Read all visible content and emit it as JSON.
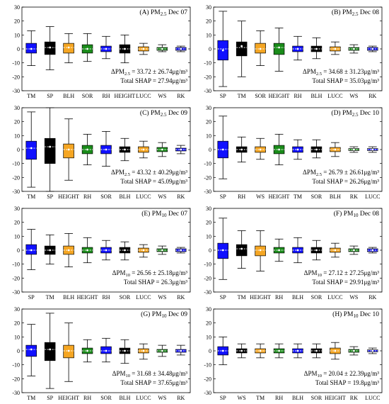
{
  "chart_data": [
    {
      "type": "box",
      "title_prefix": "(A) PM",
      "title_sub": "2.5",
      "title_suffix": " Dec 07",
      "categories": [
        "TM",
        "SP",
        "BLH",
        "SOR",
        "RH",
        "HEIGHT",
        "LUCC",
        "WS",
        "RK"
      ],
      "colors": [
        "#1010ff",
        "#000000",
        "#f5a623",
        "#1a8c1a",
        "#1010ff",
        "#000000",
        "#f5a623",
        "#1a8c1a",
        "#1010ff"
      ],
      "boxes": [
        {
          "q1": -3,
          "q3": 4,
          "median": 0,
          "mean": 0,
          "wlo": -12,
          "whi": 13
        },
        {
          "q1": -4,
          "q3": 5,
          "median": 1,
          "mean": 1,
          "wlo": -15,
          "whi": 16
        },
        {
          "q1": -3,
          "q3": 4,
          "median": 1,
          "mean": 1,
          "wlo": -10,
          "whi": 11
        },
        {
          "q1": -3,
          "q3": 3,
          "median": 0,
          "mean": 0,
          "wlo": -9,
          "whi": 11
        },
        {
          "q1": -2,
          "q3": 2,
          "median": 0,
          "mean": 0,
          "wlo": -7,
          "whi": 9
        },
        {
          "q1": -3,
          "q3": 3,
          "median": 0,
          "mean": 0,
          "wlo": -10,
          "whi": 10
        },
        {
          "q1": -1.5,
          "q3": 1.5,
          "median": 0,
          "mean": 0,
          "wlo": -4,
          "whi": 4
        },
        {
          "q1": -1,
          "q3": 1,
          "median": 0,
          "mean": 0,
          "wlo": -2,
          "whi": 3
        },
        {
          "q1": -1,
          "q3": 1,
          "median": 0,
          "mean": 0,
          "wlo": -2,
          "whi": 2
        }
      ],
      "stat_mean_label": "ΔPM",
      "stat_mean_sub": "2.5",
      "stat_mean_value": " = 33.72 ± 26.74μg/m³",
      "stat_total": "Total  SHAP = 27.94μg/m³",
      "ylim": [
        -30,
        30
      ],
      "yticks": [
        -30,
        -20,
        -10,
        0,
        10,
        20,
        30
      ]
    },
    {
      "type": "box",
      "title_prefix": "(B) PM",
      "title_sub": "2.5",
      "title_suffix": " Dec 08",
      "categories": [
        "SP",
        "TM",
        "SOR",
        "HEIGHT",
        "RH",
        "BLH",
        "LUCC",
        "WS",
        "RK"
      ],
      "colors": [
        "#1010ff",
        "#000000",
        "#f5a623",
        "#1a8c1a",
        "#1010ff",
        "#000000",
        "#f5a623",
        "#1a8c1a",
        "#1010ff"
      ],
      "boxes": [
        {
          "q1": -8,
          "q3": 6,
          "median": 0,
          "mean": -1,
          "wlo": -27,
          "whi": 27
        },
        {
          "q1": -5,
          "q3": 5,
          "median": 1,
          "mean": 2,
          "wlo": -20,
          "whi": 20
        },
        {
          "q1": -3,
          "q3": 4,
          "median": 0,
          "mean": 0,
          "wlo": -12,
          "whi": 13
        },
        {
          "q1": -4,
          "q3": 4,
          "median": 1,
          "mean": 1,
          "wlo": -16,
          "whi": 15
        },
        {
          "q1": -2,
          "q3": 2,
          "median": 0,
          "mean": 0,
          "wlo": -8,
          "whi": 9
        },
        {
          "q1": -2,
          "q3": 2,
          "median": 0,
          "mean": 0,
          "wlo": -7,
          "whi": 8
        },
        {
          "q1": -1.5,
          "q3": 1.5,
          "median": 0,
          "mean": 0,
          "wlo": -4,
          "whi": 5
        },
        {
          "q1": -1,
          "q3": 1,
          "median": 0,
          "mean": 0,
          "wlo": -3,
          "whi": 3
        },
        {
          "q1": -1,
          "q3": 1,
          "median": 0,
          "mean": 0,
          "wlo": -2,
          "whi": 2
        }
      ],
      "stat_mean_label": "ΔPM",
      "stat_mean_sub": "2.5",
      "stat_mean_value": " = 34.68 ± 31.23μg/m³",
      "stat_total": "Total  SHAP = 35.03μg/m³",
      "ylim": [
        -30,
        30
      ],
      "yticks": [
        -30,
        -20,
        -10,
        0,
        10,
        20,
        30
      ]
    },
    {
      "type": "box",
      "title_prefix": "(C) PM",
      "title_sub": "2.5",
      "title_suffix": " Dec 09",
      "categories": [
        "TM",
        "SP",
        "HEIGHT",
        "RH",
        "SOR",
        "BLH",
        "LUCC",
        "WS",
        "RK"
      ],
      "colors": [
        "#1010ff",
        "#000000",
        "#f5a623",
        "#1a8c1a",
        "#1010ff",
        "#000000",
        "#f5a623",
        "#1a8c1a",
        "#1010ff"
      ],
      "boxes": [
        {
          "q1": -7,
          "q3": 6,
          "median": 1,
          "mean": 1,
          "wlo": -27,
          "whi": 27
        },
        {
          "q1": -10,
          "q3": 8,
          "median": 2,
          "mean": 2,
          "wlo": -30,
          "whi": 30
        },
        {
          "q1": -6,
          "q3": 4,
          "median": 0,
          "mean": 0,
          "wlo": -22,
          "whi": 22
        },
        {
          "q1": -3,
          "q3": 3,
          "median": 0,
          "mean": 0,
          "wlo": -11,
          "whi": 11
        },
        {
          "q1": -3,
          "q3": 3,
          "median": 0,
          "mean": 0,
          "wlo": -12,
          "whi": 13
        },
        {
          "q1": -2,
          "q3": 2,
          "median": 0,
          "mean": 0,
          "wlo": -8,
          "whi": 8
        },
        {
          "q1": -2,
          "q3": 2,
          "median": 0,
          "mean": 0,
          "wlo": -6,
          "whi": 6
        },
        {
          "q1": -1.5,
          "q3": 1.5,
          "median": 0,
          "mean": 0,
          "wlo": -5,
          "whi": 5
        },
        {
          "q1": -1,
          "q3": 1,
          "median": 0,
          "mean": 0,
          "wlo": -3,
          "whi": 3
        }
      ],
      "stat_mean_label": "ΔPM",
      "stat_mean_sub": "2.5",
      "stat_mean_value": " = 43.32 ± 40.29μg/m³",
      "stat_total": "Total  SHAP = 45.09μg/m³",
      "ylim": [
        -30,
        30
      ],
      "yticks": [
        -30,
        -20,
        -10,
        0,
        10,
        20,
        30
      ]
    },
    {
      "type": "box",
      "title_prefix": "(D) PM",
      "title_sub": "2.5",
      "title_suffix": " Dec 10",
      "categories": [
        "SP",
        "RH",
        "WS",
        "HEIGHT",
        "TM",
        "SOR",
        "BLH",
        "RK",
        "LUCC"
      ],
      "colors": [
        "#1010ff",
        "#000000",
        "#f5a623",
        "#1a8c1a",
        "#1010ff",
        "#000000",
        "#f5a623",
        "#1a8c1a",
        "#1010ff"
      ],
      "boxes": [
        {
          "q1": -6,
          "q3": 6,
          "median": 0,
          "mean": 0,
          "wlo": -21,
          "whi": 24
        },
        {
          "q1": -2,
          "q3": 2,
          "median": 0,
          "mean": 0,
          "wlo": -9,
          "whi": 9
        },
        {
          "q1": -2,
          "q3": 2,
          "median": 0,
          "mean": 0,
          "wlo": -7,
          "whi": 8
        },
        {
          "q1": -3,
          "q3": 3,
          "median": 0,
          "mean": 0,
          "wlo": -11,
          "whi": 11
        },
        {
          "q1": -2,
          "q3": 2,
          "median": 0,
          "mean": 0,
          "wlo": -7,
          "whi": 7
        },
        {
          "q1": -2,
          "q3": 2,
          "median": 0,
          "mean": 0,
          "wlo": -6,
          "whi": 7
        },
        {
          "q1": -1.5,
          "q3": 1.5,
          "median": 0,
          "mean": 0,
          "wlo": -5,
          "whi": 5
        },
        {
          "q1": -0.7,
          "q3": 0.7,
          "median": 0,
          "mean": 0,
          "wlo": -2,
          "whi": 2
        },
        {
          "q1": -0.7,
          "q3": 0.7,
          "median": 0,
          "mean": 0,
          "wlo": -2,
          "whi": 2
        }
      ],
      "stat_mean_label": "ΔPM",
      "stat_mean_sub": "2.5",
      "stat_mean_value": " = 26.79 ± 26.61μg/m³",
      "stat_total": "Total  SHAP = 26.26μg/m³",
      "ylim": [
        -30,
        30
      ],
      "yticks": [
        -30,
        -20,
        -10,
        0,
        10,
        20,
        30
      ]
    },
    {
      "type": "box",
      "title_prefix": "(E) PM",
      "title_sub": "10",
      "title_suffix": " Dec 07",
      "categories": [
        "SP",
        "TM",
        "BLH",
        "HEIGHT",
        "RH",
        "SOR",
        "LUCC",
        "WS",
        "RK"
      ],
      "colors": [
        "#1010ff",
        "#000000",
        "#f5a623",
        "#1a8c1a",
        "#1010ff",
        "#000000",
        "#f5a623",
        "#1a8c1a",
        "#1010ff"
      ],
      "boxes": [
        {
          "q1": -3,
          "q3": 4,
          "median": 0,
          "mean": 0,
          "wlo": -14,
          "whi": 15
        },
        {
          "q1": -3,
          "q3": 3,
          "median": 0,
          "mean": 0,
          "wlo": -10,
          "whi": 11
        },
        {
          "q1": -3,
          "q3": 3,
          "median": 0,
          "mean": 0,
          "wlo": -12,
          "whi": 12
        },
        {
          "q1": -2,
          "q3": 2,
          "median": 0,
          "mean": 0,
          "wlo": -9,
          "whi": 9
        },
        {
          "q1": -2,
          "q3": 2,
          "median": 0,
          "mean": 0,
          "wlo": -7,
          "whi": 7
        },
        {
          "q1": -2,
          "q3": 2,
          "median": 0,
          "mean": 0,
          "wlo": -7,
          "whi": 6
        },
        {
          "q1": -1.5,
          "q3": 1.5,
          "median": 0,
          "mean": 0,
          "wlo": -5,
          "whi": 4
        },
        {
          "q1": -1,
          "q3": 1,
          "median": 0,
          "mean": 0,
          "wlo": -3,
          "whi": 3
        },
        {
          "q1": -1,
          "q3": 1,
          "median": 0,
          "mean": 0,
          "wlo": -2,
          "whi": 2
        }
      ],
      "stat_mean_label": "ΔPM",
      "stat_mean_sub": "10",
      "stat_mean_value": " = 26.56 ± 25.18μg/m³",
      "stat_total": "Total  SHAP = 26.3μg/m³",
      "ylim": [
        -30,
        30
      ],
      "yticks": [
        -30,
        -20,
        -10,
        0,
        10,
        20,
        30
      ]
    },
    {
      "type": "box",
      "title_prefix": "(F) PM",
      "title_sub": "10",
      "title_suffix": " Dec 08",
      "categories": [
        "SP",
        "TM",
        "HEIGHT",
        "RH",
        "BLH",
        "SOR",
        "LUCC",
        "WS",
        "RK"
      ],
      "colors": [
        "#1010ff",
        "#000000",
        "#f5a623",
        "#1a8c1a",
        "#1010ff",
        "#000000",
        "#f5a623",
        "#1a8c1a",
        "#1010ff"
      ],
      "boxes": [
        {
          "q1": -6,
          "q3": 5,
          "median": 0,
          "mean": 0,
          "wlo": -21,
          "whi": 23
        },
        {
          "q1": -4,
          "q3": 4,
          "median": 1,
          "mean": 1,
          "wlo": -13,
          "whi": 14
        },
        {
          "q1": -4,
          "q3": 3,
          "median": 0,
          "mean": 0,
          "wlo": -15,
          "whi": 14
        },
        {
          "q1": -2,
          "q3": 2,
          "median": 0,
          "mean": 0,
          "wlo": -8,
          "whi": 8
        },
        {
          "q1": -2,
          "q3": 2,
          "median": 0,
          "mean": 0,
          "wlo": -9,
          "whi": 9
        },
        {
          "q1": -2,
          "q3": 2,
          "median": 0,
          "mean": 0,
          "wlo": -7,
          "whi": 7
        },
        {
          "q1": -1.5,
          "q3": 1.5,
          "median": 0,
          "mean": 0,
          "wlo": -5,
          "whi": 5
        },
        {
          "q1": -1,
          "q3": 1,
          "median": 0,
          "mean": 0,
          "wlo": -3,
          "whi": 3
        },
        {
          "q1": -1,
          "q3": 1,
          "median": 0,
          "mean": 0,
          "wlo": -2,
          "whi": 2
        }
      ],
      "stat_mean_label": "ΔPM",
      "stat_mean_sub": "10",
      "stat_mean_value": " = 27.12 ± 27.25μg/m³",
      "stat_total": "Total  SHAP = 29.91μg/m³",
      "ylim": [
        -30,
        30
      ],
      "yticks": [
        -30,
        -20,
        -10,
        0,
        10,
        20,
        30
      ]
    },
    {
      "type": "box",
      "title_prefix": "(G) PM",
      "title_sub": "10",
      "title_suffix": " Dec 09",
      "categories": [
        "TM",
        "SP",
        "HEIGHT",
        "RH",
        "SOR",
        "BLH",
        "LUCC",
        "WS",
        "RK"
      ],
      "colors": [
        "#1010ff",
        "#000000",
        "#f5a623",
        "#1a8c1a",
        "#1010ff",
        "#000000",
        "#f5a623",
        "#1a8c1a",
        "#1010ff"
      ],
      "boxes": [
        {
          "q1": -4,
          "q3": 4,
          "median": 1,
          "mean": 1,
          "wlo": -18,
          "whi": 19
        },
        {
          "q1": -7,
          "q3": 6,
          "median": 1,
          "mean": 1,
          "wlo": -27,
          "whi": 27
        },
        {
          "q1": -5,
          "q3": 4,
          "median": 0,
          "mean": 0,
          "wlo": -22,
          "whi": 20
        },
        {
          "q1": -2,
          "q3": 2,
          "median": 0,
          "mean": 0,
          "wlo": -8,
          "whi": 8
        },
        {
          "q1": -2,
          "q3": 3,
          "median": 0,
          "mean": 0,
          "wlo": -8,
          "whi": 9
        },
        {
          "q1": -2,
          "q3": 2,
          "median": 0,
          "mean": 0,
          "wlo": -9,
          "whi": 8
        },
        {
          "q1": -1.5,
          "q3": 1.5,
          "median": 0,
          "mean": 0,
          "wlo": -6,
          "whi": 5
        },
        {
          "q1": -1,
          "q3": 1,
          "median": 0,
          "mean": 0,
          "wlo": -4,
          "whi": 4
        },
        {
          "q1": -1,
          "q3": 1,
          "median": 0,
          "mean": 0,
          "wlo": -3,
          "whi": 4
        }
      ],
      "stat_mean_label": "ΔPM",
      "stat_mean_sub": "10",
      "stat_mean_value": " = 31.68 ± 34.48μg/m³",
      "stat_total": "Total  SHAP = 37.65μg/m³",
      "ylim": [
        -30,
        30
      ],
      "yticks": [
        -30,
        -20,
        -10,
        0,
        10,
        20,
        30
      ]
    },
    {
      "type": "box",
      "title_prefix": "(H) PM",
      "title_sub": "10",
      "title_suffix": " Dec 10",
      "categories": [
        "SP",
        "WS",
        "TM",
        "RH",
        "BLH",
        "SOR",
        "HEIGHT",
        "RK",
        "LUCC"
      ],
      "colors": [
        "#1010ff",
        "#000000",
        "#f5a623",
        "#1a8c1a",
        "#1010ff",
        "#000000",
        "#f5a623",
        "#1a8c1a",
        "#1010ff"
      ],
      "boxes": [
        {
          "q1": -3,
          "q3": 3,
          "median": 0,
          "mean": 0,
          "wlo": -10,
          "whi": 10
        },
        {
          "q1": -1.5,
          "q3": 1.5,
          "median": 0,
          "mean": 0,
          "wlo": -5,
          "whi": 5
        },
        {
          "q1": -1.5,
          "q3": 1.5,
          "median": 0,
          "mean": 0,
          "wlo": -5,
          "whi": 5
        },
        {
          "q1": -1.5,
          "q3": 1.5,
          "median": 0,
          "mean": 0,
          "wlo": -5,
          "whi": 5
        },
        {
          "q1": -1.5,
          "q3": 1.5,
          "median": 0,
          "mean": 0,
          "wlo": -5,
          "whi": 5
        },
        {
          "q1": -1.5,
          "q3": 1.5,
          "median": 0,
          "mean": 0,
          "wlo": -5,
          "whi": 5
        },
        {
          "q1": -2,
          "q3": 2,
          "median": 0,
          "mean": 0,
          "wlo": -6,
          "whi": 6
        },
        {
          "q1": -1,
          "q3": 1,
          "median": 0,
          "mean": 0,
          "wlo": -3,
          "whi": 3
        },
        {
          "q1": -0.7,
          "q3": 0.7,
          "median": 0,
          "mean": 0,
          "wlo": -2,
          "whi": 2
        }
      ],
      "stat_mean_label": "ΔPM",
      "stat_mean_sub": "10",
      "stat_mean_value": " = 20.04 ± 22.39μg/m³",
      "stat_total": "Total  SHAP = 19.8μg/m³",
      "ylim": [
        -30,
        30
      ],
      "yticks": [
        -30,
        -20,
        -10,
        0,
        10,
        20,
        30
      ]
    }
  ]
}
